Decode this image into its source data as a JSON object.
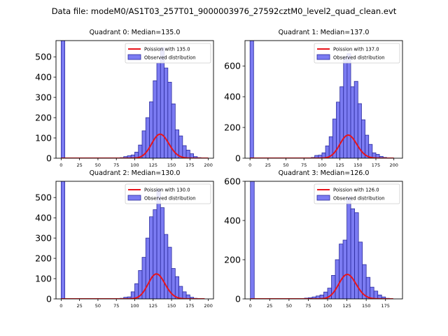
{
  "figure": {
    "suptitle": "Data file: modeM0/AS1T03_257T01_9000003976_27592cztM0_level2_quad_clean.evt",
    "colors": {
      "bar_fill": "#7b7bf2",
      "bar_edge": "#2b2b9e",
      "curve": "#e8141b"
    }
  },
  "chart_data": [
    {
      "type": "bar",
      "title": "Quadrant 0: Median=135.0",
      "legend": {
        "placement": "top-right",
        "line_label": "Poission with 135.0",
        "bar_label": "Observed distribution"
      },
      "xlim": [
        -7,
        207
      ],
      "ylim": [
        0,
        580
      ],
      "xticks": [
        0,
        25,
        50,
        75,
        100,
        125,
        150,
        175,
        200
      ],
      "yticks": [
        0,
        100,
        200,
        300,
        400,
        500
      ],
      "bin_width": 5,
      "bins": [
        [
          0,
          580
        ],
        [
          80,
          3
        ],
        [
          85,
          8
        ],
        [
          90,
          12
        ],
        [
          95,
          16
        ],
        [
          100,
          30
        ],
        [
          105,
          65
        ],
        [
          110,
          135
        ],
        [
          115,
          200
        ],
        [
          120,
          278
        ],
        [
          125,
          382
        ],
        [
          130,
          470
        ],
        [
          135,
          545
        ],
        [
          140,
          445
        ],
        [
          145,
          375
        ],
        [
          150,
          268
        ],
        [
          155,
          140
        ],
        [
          160,
          110
        ],
        [
          165,
          62
        ],
        [
          170,
          40
        ],
        [
          175,
          22
        ],
        [
          180,
          8
        ],
        [
          185,
          3
        ]
      ],
      "poisson_mean": 135.0,
      "poisson_scale": 3450,
      "curve_range": [
        0,
        200
      ]
    },
    {
      "type": "bar",
      "title": "Quadrant 1: Median=137.0",
      "legend": {
        "placement": "top-right",
        "line_label": "Poission with 137.0",
        "bar_label": "Observed distribution"
      },
      "xlim": [
        -7,
        212
      ],
      "ylim": [
        0,
        765
      ],
      "xticks": [
        0,
        25,
        50,
        75,
        100,
        125,
        150,
        175,
        200
      ],
      "yticks": [
        0,
        200,
        400,
        600
      ],
      "bin_width": 5,
      "bins": [
        [
          0,
          765
        ],
        [
          85,
          5
        ],
        [
          90,
          18
        ],
        [
          95,
          20
        ],
        [
          100,
          35
        ],
        [
          105,
          80
        ],
        [
          110,
          140
        ],
        [
          115,
          255
        ],
        [
          120,
          365
        ],
        [
          125,
          465
        ],
        [
          130,
          660
        ],
        [
          135,
          680
        ],
        [
          140,
          465
        ],
        [
          145,
          500
        ],
        [
          150,
          355
        ],
        [
          155,
          250
        ],
        [
          160,
          150
        ],
        [
          165,
          90
        ],
        [
          170,
          35
        ],
        [
          175,
          25
        ],
        [
          180,
          12
        ],
        [
          185,
          5
        ]
      ],
      "poisson_mean": 137.0,
      "poisson_scale": 4410,
      "curve_range": [
        0,
        200
      ]
    },
    {
      "type": "bar",
      "title": "Quadrant 2: Median=130.0",
      "legend": {
        "placement": "top-right",
        "line_label": "Poission with 130.0",
        "bar_label": "Observed distribution"
      },
      "xlim": [
        -7,
        207
      ],
      "ylim": [
        0,
        580
      ],
      "xticks": [
        0,
        25,
        50,
        75,
        100,
        125,
        150,
        175,
        200
      ],
      "yticks": [
        0,
        100,
        200,
        300,
        400,
        500
      ],
      "bin_width": 5,
      "bins": [
        [
          0,
          580
        ],
        [
          80,
          3
        ],
        [
          85,
          8
        ],
        [
          90,
          10
        ],
        [
          95,
          35
        ],
        [
          100,
          75
        ],
        [
          105,
          140
        ],
        [
          110,
          205
        ],
        [
          115,
          300
        ],
        [
          120,
          405
        ],
        [
          125,
          440
        ],
        [
          130,
          542
        ],
        [
          135,
          450
        ],
        [
          140,
          318
        ],
        [
          145,
          255
        ],
        [
          150,
          150
        ],
        [
          155,
          110
        ],
        [
          160,
          62
        ],
        [
          165,
          35
        ],
        [
          170,
          20
        ],
        [
          175,
          8
        ],
        [
          180,
          3
        ]
      ],
      "poisson_mean": 130.0,
      "poisson_scale": 3520,
      "curve_range": [
        0,
        195
      ]
    },
    {
      "type": "bar",
      "title": "Quadrant 3: Median=126.0",
      "legend": {
        "placement": "top-right",
        "line_label": "Poission with 126.0",
        "bar_label": "Observed distribution"
      },
      "xlim": [
        -7,
        197
      ],
      "ylim": [
        0,
        600
      ],
      "xticks": [
        0,
        25,
        50,
        75,
        100,
        125,
        150,
        175
      ],
      "yticks": [
        0,
        200,
        400,
        600
      ],
      "bin_width": 5,
      "bins": [
        [
          0,
          600
        ],
        [
          70,
          4
        ],
        [
          75,
          6
        ],
        [
          80,
          10
        ],
        [
          85,
          15
        ],
        [
          90,
          20
        ],
        [
          95,
          35
        ],
        [
          100,
          55
        ],
        [
          105,
          120
        ],
        [
          110,
          200
        ],
        [
          115,
          280
        ],
        [
          120,
          300
        ],
        [
          125,
          520
        ],
        [
          130,
          460
        ],
        [
          135,
          440
        ],
        [
          140,
          290
        ],
        [
          145,
          175
        ],
        [
          150,
          110
        ],
        [
          155,
          60
        ],
        [
          160,
          40
        ],
        [
          165,
          20
        ],
        [
          170,
          10
        ],
        [
          175,
          3
        ]
      ],
      "poisson_mean": 126.0,
      "poisson_scale": 3520,
      "curve_range": [
        0,
        185
      ]
    }
  ]
}
